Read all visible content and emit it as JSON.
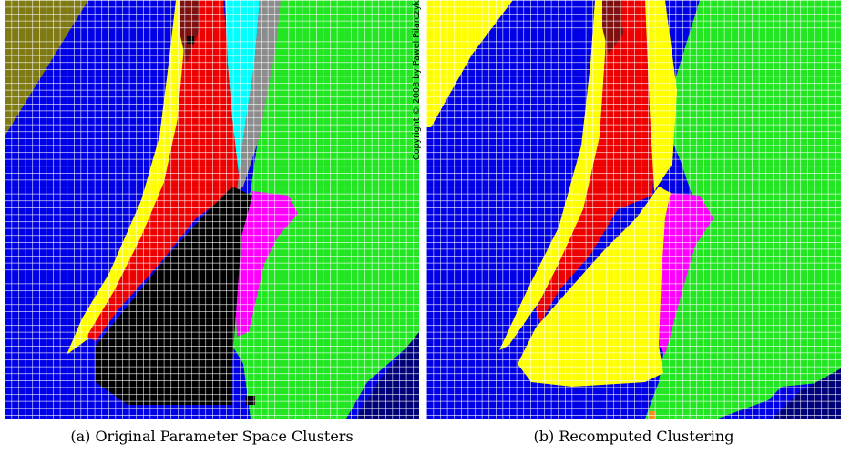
{
  "figure": {
    "panels": [
      {
        "id": "a",
        "caption": "(a) Original Parameter Space Clusters",
        "regions": [
          {
            "color": "blue"
          },
          {
            "color": "olive"
          },
          {
            "color": "yellow"
          },
          {
            "color": "red"
          },
          {
            "color": "dark-red"
          },
          {
            "color": "cyan"
          },
          {
            "color": "gray"
          },
          {
            "color": "green"
          },
          {
            "color": "magenta"
          },
          {
            "color": "black"
          },
          {
            "color": "navy"
          },
          {
            "color": "white"
          }
        ]
      },
      {
        "id": "b",
        "caption": "(b) Recomputed Clustering",
        "regions": [
          {
            "color": "blue"
          },
          {
            "color": "yellow"
          },
          {
            "color": "red"
          },
          {
            "color": "dark-red"
          },
          {
            "color": "green"
          },
          {
            "color": "magenta"
          },
          {
            "color": "navy"
          },
          {
            "color": "orange"
          }
        ]
      }
    ],
    "copyright": "Copyright © 2008 by Pawel Pilarczyk",
    "colors": {
      "blue": "#0000e6",
      "olive": "#7f7a14",
      "yellow": "#ffff00",
      "red": "#ee0000",
      "dark-red": "#7f1010",
      "cyan": "#00ffff",
      "gray": "#8c8c8c",
      "green": "#22e622",
      "magenta": "#ff00ff",
      "black": "#000000",
      "navy": "#000078",
      "orange": "#ff8c1a",
      "grid": "#ffffff"
    }
  }
}
